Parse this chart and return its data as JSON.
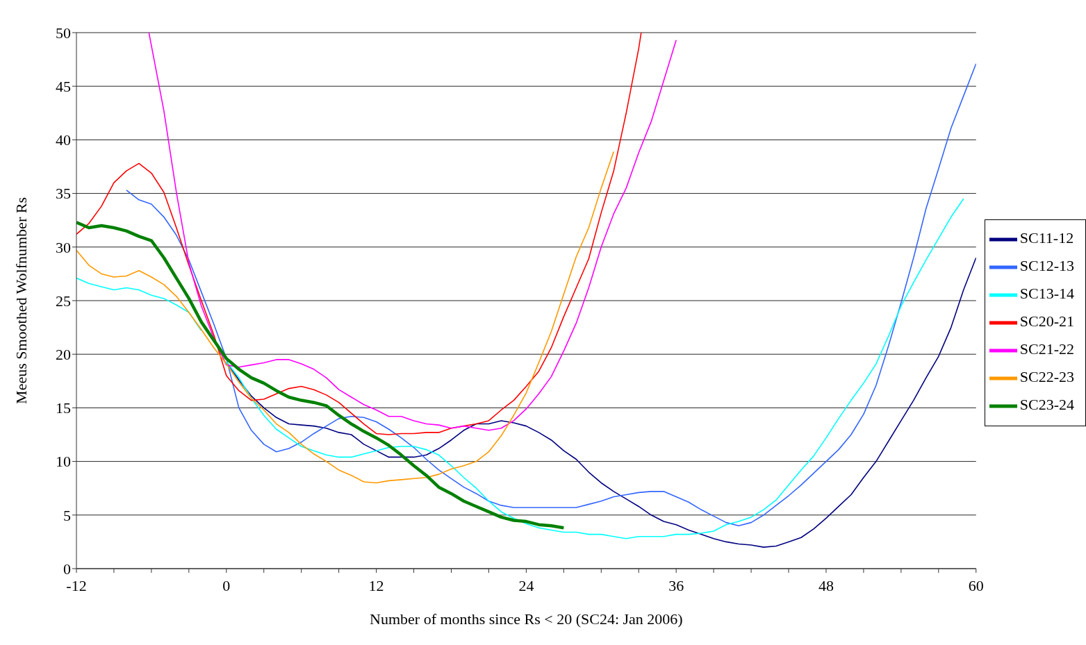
{
  "chart_data": {
    "type": "line",
    "xlabel": "Number of months since Rs < 20 (SC24: Jan 2006)",
    "ylabel": "Meeus Smoothed Wolfnumber Rs",
    "xlim": [
      -12,
      60
    ],
    "ylim": [
      0,
      50
    ],
    "xticks": [
      -12,
      {
        "value": -9,
        "label": null
      },
      {
        "value": -6,
        "label": null
      },
      {
        "value": -3,
        "label": null
      },
      0,
      {
        "value": 3,
        "label": null
      },
      {
        "value": 6,
        "label": null
      },
      {
        "value": 9,
        "label": null
      },
      12,
      {
        "value": 15,
        "label": null
      },
      {
        "value": 18,
        "label": null
      },
      {
        "value": 21,
        "label": null
      },
      24,
      {
        "value": 27,
        "label": null
      },
      {
        "value": 30,
        "label": null
      },
      {
        "value": 33,
        "label": null
      },
      36,
      {
        "value": 39,
        "label": null
      },
      {
        "value": 42,
        "label": null
      },
      {
        "value": 45,
        "label": null
      },
      48,
      {
        "value": 51,
        "label": null
      },
      {
        "value": 54,
        "label": null
      },
      {
        "value": 57,
        "label": null
      },
      60
    ],
    "yticks": [
      0,
      5,
      10,
      15,
      20,
      25,
      30,
      35,
      40,
      45,
      50
    ],
    "grid": "y",
    "legend": "right",
    "marker": "none",
    "line_style": "solid",
    "series": [
      {
        "name": "SC11-12",
        "color": "#000080",
        "x": [
          0,
          1,
          2,
          3,
          4,
          5,
          6,
          7,
          8,
          9,
          10,
          11,
          12,
          13,
          14,
          15,
          16,
          17,
          18,
          19,
          20,
          21,
          22,
          23,
          24,
          25,
          26,
          27,
          28,
          29,
          30,
          31,
          32,
          33,
          34,
          35,
          36,
          37,
          38,
          39,
          40,
          41,
          42,
          43,
          44,
          45,
          46,
          47,
          48,
          49,
          50,
          51,
          52,
          53,
          54,
          55,
          56,
          57,
          58,
          59,
          60
        ],
        "values": [
          19.3,
          17.6,
          16.1,
          15.0,
          14.1,
          13.5,
          13.4,
          13.3,
          13.1,
          12.7,
          12.5,
          11.6,
          11.0,
          10.4,
          10.4,
          10.4,
          10.6,
          11.2,
          12.0,
          12.9,
          13.5,
          13.5,
          13.8,
          13.6,
          13.3,
          12.7,
          12.0,
          11.0,
          10.2,
          9.0,
          8.0,
          7.2,
          6.5,
          5.8,
          5.0,
          4.4,
          4.1,
          3.6,
          3.2,
          2.8,
          2.5,
          2.3,
          2.2,
          2.0,
          2.1,
          2.5,
          2.9,
          3.7,
          4.7,
          5.8,
          6.9,
          8.5,
          10.0,
          11.9,
          13.8,
          15.7,
          17.8,
          19.8,
          22.5,
          26.0,
          29.0
        ]
      },
      {
        "name": "SC12-13",
        "color": "#3366ff",
        "x": [
          -8,
          -7,
          -6,
          -5,
          -4,
          -3,
          -2,
          -1,
          0,
          1,
          2,
          3,
          4,
          5,
          6,
          7,
          8,
          9,
          10,
          11,
          12,
          13,
          14,
          15,
          16,
          17,
          18,
          19,
          20,
          21,
          22,
          23,
          24,
          25,
          26,
          27,
          28,
          29,
          30,
          31,
          32,
          33,
          34,
          35,
          36,
          37,
          38,
          39,
          40,
          41,
          42,
          43,
          44,
          45,
          46,
          47,
          48,
          49,
          50,
          51,
          52,
          53,
          54,
          55,
          56,
          57,
          58,
          59,
          60
        ],
        "values": [
          35.3,
          34.4,
          34.0,
          32.8,
          31.1,
          28.8,
          25.8,
          22.8,
          19.6,
          15.0,
          12.9,
          11.6,
          10.9,
          11.2,
          11.8,
          12.6,
          13.3,
          14.0,
          14.2,
          14.1,
          13.7,
          13.0,
          12.2,
          11.3,
          10.2,
          9.2,
          8.4,
          7.6,
          7.0,
          6.3,
          5.9,
          5.7,
          5.7,
          5.7,
          5.7,
          5.7,
          5.7,
          6.0,
          6.3,
          6.7,
          6.9,
          7.1,
          7.2,
          7.2,
          6.7,
          6.2,
          5.5,
          4.9,
          4.3,
          4.0,
          4.3,
          5.0,
          5.9,
          6.8,
          7.8,
          8.9,
          10.0,
          11.1,
          12.5,
          14.4,
          17.1,
          20.8,
          24.8,
          29.0,
          33.6,
          37.3,
          41.1,
          44.1,
          47.1
        ]
      },
      {
        "name": "SC13-14",
        "color": "#00ffff",
        "x": [
          -12,
          -11,
          -10,
          -9,
          -8,
          -7,
          -6,
          -5,
          -4,
          -3,
          -2,
          -1,
          0,
          1,
          2,
          3,
          4,
          5,
          6,
          7,
          8,
          9,
          10,
          11,
          12,
          13,
          14,
          15,
          16,
          17,
          18,
          19,
          20,
          21,
          22,
          23,
          24,
          25,
          26,
          27,
          28,
          29,
          30,
          31,
          32,
          33,
          34,
          35,
          36,
          37,
          38,
          39,
          40,
          41,
          42,
          43,
          44,
          45,
          46,
          47,
          48,
          49,
          50,
          51,
          52,
          53,
          54,
          55,
          56,
          57,
          58,
          59
        ],
        "values": [
          27.1,
          26.6,
          26.3,
          26.0,
          26.2,
          26.0,
          25.5,
          25.2,
          24.6,
          23.9,
          22.2,
          null,
          19.3,
          17.8,
          15.9,
          14.3,
          13.0,
          12.2,
          11.4,
          11.0,
          10.6,
          10.4,
          10.4,
          10.7,
          11.0,
          11.3,
          11.4,
          11.4,
          11.1,
          10.6,
          9.6,
          8.5,
          7.5,
          6.3,
          5.3,
          4.7,
          4.2,
          3.8,
          3.6,
          3.4,
          3.4,
          3.2,
          3.2,
          3.0,
          2.8,
          3.0,
          3.0,
          3.0,
          3.2,
          3.2,
          3.3,
          3.5,
          4.1,
          4.4,
          4.8,
          5.5,
          6.4,
          7.8,
          9.2,
          10.5,
          12.2,
          14.0,
          15.7,
          17.3,
          19.1,
          21.7,
          24.5,
          26.7,
          28.8,
          30.8,
          32.8,
          34.5
        ]
      },
      {
        "name": "SC20-21",
        "color": "#ff0000",
        "x": [
          -12,
          -11,
          -10,
          -9,
          -8,
          -7,
          -6,
          -5,
          -4,
          -3,
          -2,
          -1,
          0,
          1,
          2,
          3,
          4,
          5,
          6,
          7,
          8,
          9,
          10,
          11,
          12,
          13,
          14,
          15,
          16,
          17,
          18,
          19,
          20,
          21,
          22,
          23,
          24,
          25,
          26,
          27,
          28,
          29,
          30,
          31,
          32,
          33,
          33.2
        ],
        "values": [
          31.2,
          32.2,
          33.8,
          36.0,
          37.1,
          37.8,
          36.9,
          35.1,
          31.8,
          28.3,
          25.0,
          21.8,
          18.0,
          16.6,
          15.7,
          15.8,
          16.3,
          16.8,
          17.0,
          16.7,
          16.2,
          15.5,
          14.5,
          13.5,
          12.6,
          12.5,
          12.6,
          12.6,
          12.7,
          12.7,
          13.1,
          13.3,
          13.5,
          13.8,
          14.8,
          15.7,
          17.0,
          18.4,
          20.6,
          23.5,
          26.2,
          28.9,
          33.2,
          37.1,
          42.5,
          48.5,
          50.0
        ]
      },
      {
        "name": "SC21-22",
        "color": "#ff00ff",
        "x": [
          -6.2,
          -5,
          -4,
          -3,
          -2,
          -1,
          0,
          1,
          2,
          3,
          4,
          5,
          6,
          7,
          8,
          9,
          10,
          11,
          12,
          13,
          14,
          15,
          16,
          17,
          18,
          19,
          20,
          21,
          22,
          23,
          24,
          25,
          26,
          27,
          28,
          29,
          30,
          31,
          32,
          33,
          34,
          35,
          36
        ],
        "values": [
          50.0,
          42.7,
          35.1,
          28.5,
          24.5,
          21.5,
          19.0,
          18.8,
          19.0,
          19.2,
          19.5,
          19.5,
          19.1,
          18.6,
          17.8,
          16.7,
          16.0,
          15.3,
          14.8,
          14.2,
          14.2,
          13.8,
          13.5,
          13.4,
          13.1,
          13.3,
          13.1,
          12.9,
          13.1,
          13.8,
          14.9,
          16.3,
          17.9,
          20.3,
          22.9,
          26.2,
          30.0,
          33.1,
          35.5,
          38.8,
          41.7,
          45.5,
          49.3
        ]
      },
      {
        "name": "SC22-23",
        "color": "#ff9900",
        "x": [
          -12,
          -11,
          -10,
          -9,
          -8,
          -7,
          -6,
          -5,
          -4,
          -3,
          -2,
          -1,
          0,
          1,
          2,
          3,
          4,
          5,
          6,
          7,
          8,
          9,
          10,
          11,
          12,
          13,
          14,
          15,
          16,
          17,
          18,
          19,
          20,
          21,
          22,
          23,
          24,
          25,
          26,
          27,
          28,
          29,
          30,
          31
        ],
        "values": [
          29.7,
          28.3,
          27.5,
          27.2,
          27.3,
          27.8,
          27.2,
          26.5,
          25.4,
          23.9,
          22.3,
          20.6,
          19.1,
          17.4,
          15.9,
          14.8,
          13.5,
          12.7,
          11.6,
          10.7,
          10.0,
          9.2,
          8.7,
          8.1,
          8.0,
          8.2,
          8.3,
          8.4,
          8.5,
          8.8,
          9.3,
          9.6,
          10.0,
          10.9,
          12.4,
          14.3,
          16.4,
          19.2,
          22.1,
          25.6,
          29.1,
          31.8,
          35.5,
          38.9
        ]
      },
      {
        "name": "SC23-24",
        "color": "#008000",
        "x": [
          -12,
          -11,
          -10,
          -9,
          -8,
          -7,
          -6,
          -5,
          -4,
          -3,
          -2,
          -1,
          0,
          1,
          2,
          3,
          4,
          5,
          6,
          7,
          8,
          9,
          10,
          11,
          12,
          13,
          14,
          15,
          16,
          17,
          18,
          19,
          20,
          21,
          22,
          23,
          24,
          25,
          26,
          27
        ],
        "values": [
          32.3,
          31.8,
          32.0,
          31.8,
          31.5,
          31.0,
          30.6,
          29.0,
          27.1,
          25.2,
          23.0,
          21.3,
          19.6,
          18.6,
          17.8,
          17.3,
          16.6,
          16.0,
          15.7,
          15.5,
          15.2,
          14.3,
          13.5,
          12.8,
          12.2,
          11.5,
          10.6,
          9.6,
          8.7,
          7.6,
          7.0,
          6.3,
          5.8,
          5.3,
          4.8,
          4.5,
          4.4,
          4.1,
          4.0,
          3.8
        ]
      }
    ]
  }
}
